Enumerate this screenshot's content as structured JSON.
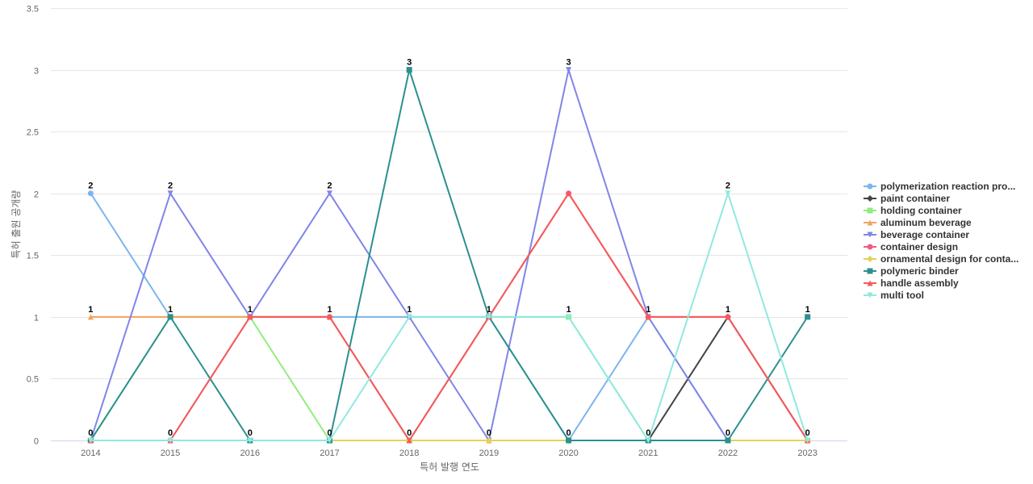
{
  "chart_data": {
    "type": "line",
    "xlabel": "특허 발행 연도",
    "ylabel": "특허 출원 공개량",
    "ylim": [
      0,
      3.5
    ],
    "yticks": [
      "0",
      "0.5",
      "1",
      "1.5",
      "2",
      "2.5",
      "3",
      "3.5"
    ],
    "categories": [
      "2014",
      "2015",
      "2016",
      "2017",
      "2018",
      "2019",
      "2020",
      "2021",
      "2022",
      "2023"
    ],
    "grid": true,
    "legend_position": "right",
    "series": [
      {
        "name": "polymerization reaction pro...",
        "color": "#7cb5ec",
        "marker": "circle",
        "values": [
          2,
          1,
          1,
          1,
          1,
          1,
          0,
          1,
          0,
          0
        ]
      },
      {
        "name": "paint container",
        "color": "#434348",
        "marker": "diamond",
        "values": [
          0,
          0,
          0,
          0,
          0,
          0,
          0,
          0,
          1,
          0
        ]
      },
      {
        "name": "holding container",
        "color": "#90ed7d",
        "marker": "square",
        "values": [
          0,
          1,
          1,
          0,
          0,
          1,
          1,
          0,
          0,
          0
        ]
      },
      {
        "name": "aluminum beverage",
        "color": "#f7a35c",
        "marker": "triangle",
        "values": [
          1,
          1,
          1,
          1,
          0,
          0,
          0,
          0,
          0,
          0
        ]
      },
      {
        "name": "beverage container",
        "color": "#8085e9",
        "marker": "triangle-down",
        "values": [
          0,
          2,
          1,
          2,
          1,
          0,
          3,
          1,
          0,
          0
        ]
      },
      {
        "name": "container design",
        "color": "#f15c80",
        "marker": "circle",
        "values": [
          0,
          0,
          1,
          1,
          0,
          1,
          2,
          1,
          1,
          0
        ]
      },
      {
        "name": "ornamental design for conta...",
        "color": "#e4d354",
        "marker": "diamond",
        "values": [
          0,
          0,
          0,
          0,
          0,
          0,
          0,
          0,
          0,
          0
        ]
      },
      {
        "name": "polymeric binder",
        "color": "#2b908f",
        "marker": "square",
        "values": [
          0,
          1,
          0,
          0,
          3,
          1,
          0,
          0,
          0,
          1
        ]
      },
      {
        "name": "handle assembly",
        "color": "#f45b5b",
        "marker": "triangle",
        "values": [
          0,
          0,
          1,
          1,
          0,
          1,
          2,
          1,
          1,
          0
        ]
      },
      {
        "name": "multi tool",
        "color": "#91e8e1",
        "marker": "triangle-down",
        "values": [
          0,
          0,
          0,
          0,
          1,
          1,
          1,
          0,
          2,
          0
        ]
      }
    ],
    "data_labels": {
      "values": [
        "2",
        "2",
        "1",
        "2",
        "3",
        "1",
        "3",
        "1",
        "2",
        "1"
      ],
      "upper": [
        "1",
        "1",
        "1",
        "1",
        "1",
        "1",
        "1",
        "1",
        "1",
        "1"
      ],
      "zeros": [
        "0",
        "0",
        "0",
        "0",
        "0",
        "0",
        "0",
        "0",
        "0",
        "0"
      ]
    }
  }
}
